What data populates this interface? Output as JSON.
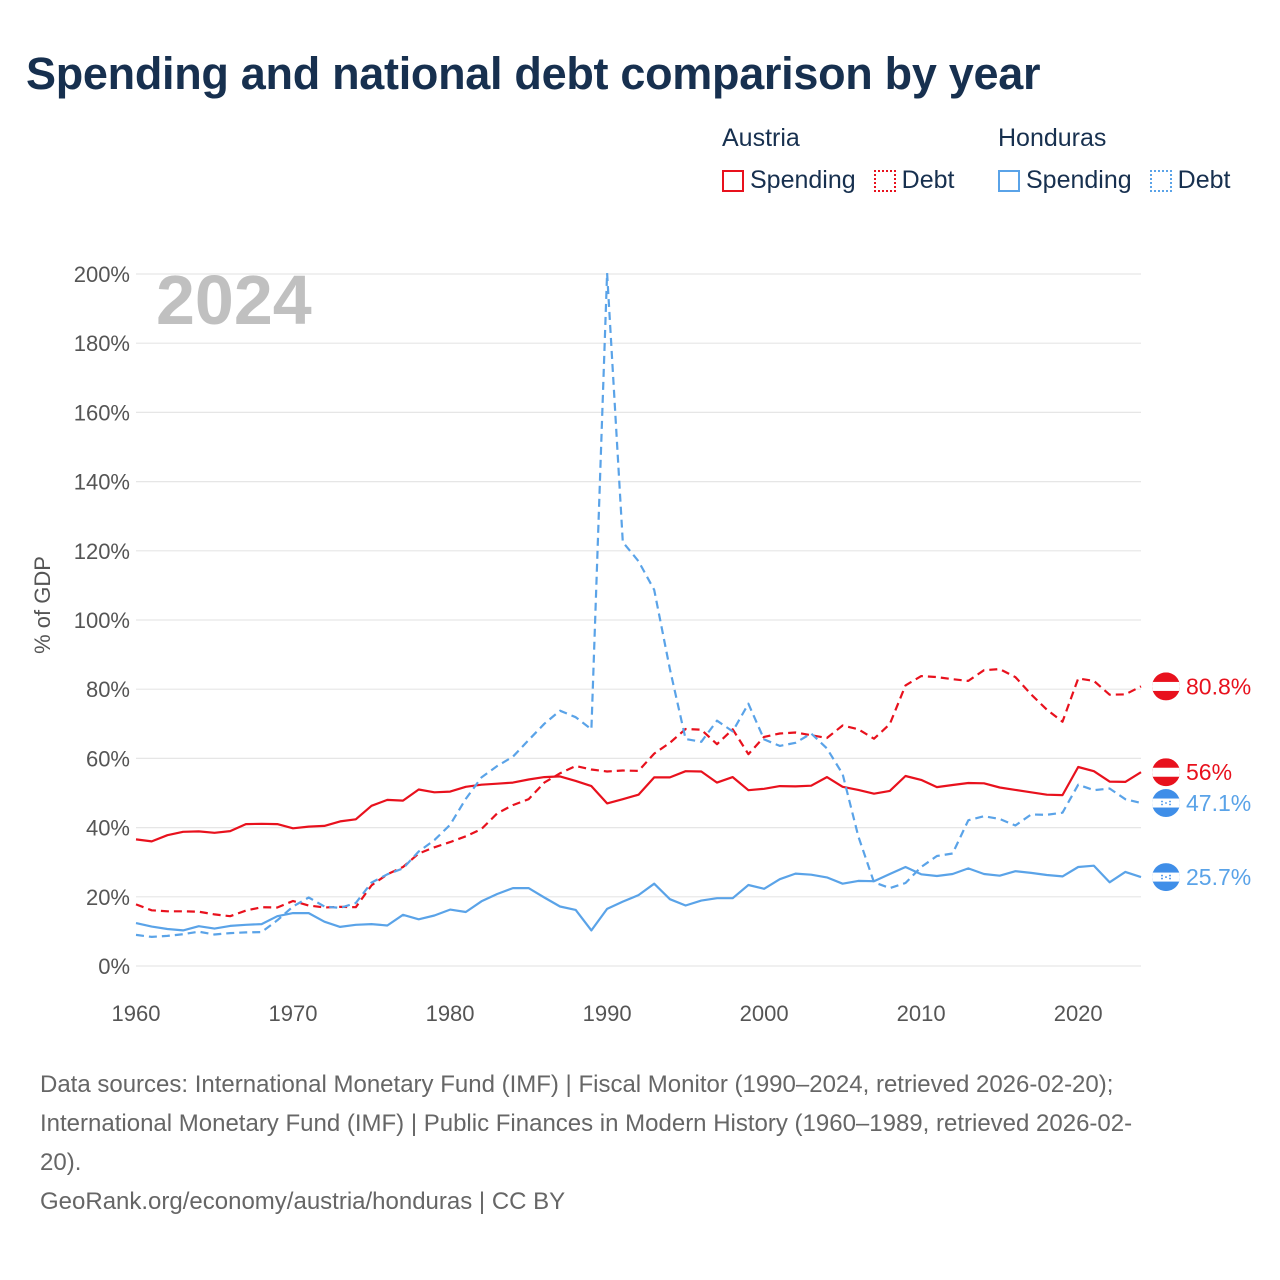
{
  "title": "Spending and national debt comparison by year",
  "legend": [
    {
      "country": "Austria",
      "color": "#e8111d",
      "items": [
        {
          "label": "Spending",
          "style": "solid"
        },
        {
          "label": "Debt",
          "style": "dotted"
        }
      ]
    },
    {
      "country": "Honduras",
      "color": "#5aa3e8",
      "items": [
        {
          "label": "Spending",
          "style": "solid"
        },
        {
          "label": "Debt",
          "style": "dotted"
        }
      ]
    }
  ],
  "footer": {
    "line1": "Data sources: International Monetary Fund (IMF) | Fiscal Monitor (1990–2024, retrieved 2026-02-20);",
    "line2": "International Monetary Fund (IMF) | Public Finances in Modern History (1960–1989, retrieved 2026-02-",
    "line3": "20).",
    "line4": "GeoRank.org/economy/austria/honduras | CC BY"
  },
  "chart_data": {
    "type": "line",
    "year_label": "2024",
    "ylabel": "% of GDP",
    "xlim": [
      1960,
      2024
    ],
    "ylim": [
      0,
      200
    ],
    "x_ticks": [
      1960,
      1970,
      1980,
      1990,
      2000,
      2010,
      2020
    ],
    "y_ticks": [
      0,
      20,
      40,
      60,
      80,
      100,
      120,
      140,
      160,
      180,
      200
    ],
    "y_tick_labels": [
      "0%",
      "20%",
      "40%",
      "60%",
      "80%",
      "100%",
      "120%",
      "140%",
      "160%",
      "180%",
      "200%"
    ],
    "x_start": 1960,
    "series": [
      {
        "name": "Austria Spending",
        "color": "#e8111d",
        "dash": "none",
        "end_label": "56%",
        "flag": "austria",
        "values": [
          36.6,
          36,
          37.8,
          38.8,
          38.9,
          38.5,
          39,
          41,
          41.1,
          41,
          39.8,
          40.3,
          40.5,
          41.8,
          42.4,
          46.3,
          48,
          47.8,
          51,
          50.2,
          50.4,
          51.8,
          52.4,
          52.7,
          53,
          53.9,
          54.6,
          54.8,
          53.5,
          52,
          47,
          48.2,
          49.5,
          54.5,
          54.5,
          56.3,
          56.2,
          53,
          54.6,
          50.8,
          51.2,
          52,
          51.9,
          52.1,
          54.6,
          51.8,
          50.9,
          49.8,
          50.6,
          54.9,
          53.8,
          51.7,
          52.3,
          52.9,
          52.8,
          51.6,
          50.9,
          50.2,
          49.5,
          49.4,
          57.5,
          56.3,
          53.3,
          53.2,
          56
        ]
      },
      {
        "name": "Austria Debt",
        "color": "#e8111d",
        "dash": "8,5",
        "end_label": "80.8%",
        "flag": "austria",
        "values": [
          17.8,
          16.1,
          15.8,
          15.8,
          15.7,
          14.9,
          14.4,
          16,
          17,
          16.9,
          18.8,
          17.5,
          16.9,
          17.1,
          17,
          23.3,
          26.5,
          28.6,
          32.5,
          34.3,
          35.8,
          37.5,
          39.6,
          44.1,
          46.5,
          48.2,
          53,
          55.7,
          57.8,
          56.8,
          56.2,
          56.5,
          56.4,
          61.4,
          64.5,
          68.5,
          68.3,
          64.1,
          68.4,
          61.2,
          66.2,
          67.2,
          67.5,
          66.7,
          65.9,
          69.5,
          68.4,
          65.7,
          69.9,
          81.1,
          83.8,
          83.5,
          82.9,
          82.4,
          85.5,
          85.8,
          83.5,
          78.5,
          74.1,
          70.6,
          83.1,
          82.4,
          78.4,
          78.5,
          80.8
        ]
      },
      {
        "name": "Honduras Spending",
        "color": "#5aa3e8",
        "dash": "none",
        "end_label": "25.7%",
        "flag": "honduras",
        "values": [
          12.4,
          11.4,
          10.7,
          10.3,
          11.5,
          10.8,
          11.6,
          11.9,
          12.1,
          14.4,
          15.3,
          15.3,
          12.8,
          11.3,
          11.9,
          12.1,
          11.7,
          14.8,
          13.5,
          14.6,
          16.3,
          15.6,
          18.7,
          20.8,
          22.5,
          22.5,
          19.8,
          17.2,
          16.2,
          10.3,
          16.5,
          18.6,
          20.5,
          23.8,
          19.3,
          17.5,
          18.9,
          19.6,
          19.6,
          23.4,
          22.3,
          25.1,
          26.7,
          26.4,
          25.6,
          23.8,
          24.6,
          24.5,
          26.6,
          28.6,
          26.5,
          26,
          26.6,
          28.2,
          26.6,
          26.1,
          27.4,
          26.9,
          26.3,
          25.9,
          28.6,
          29,
          24.2,
          27.2,
          25.7
        ]
      },
      {
        "name": "Honduras Debt",
        "color": "#5aa3e8",
        "dash": "8,5",
        "end_label": "47.1%",
        "flag": "honduras",
        "values": [
          9,
          8.4,
          8.7,
          9.2,
          9.9,
          9.1,
          9.5,
          9.7,
          9.8,
          13.2,
          17.2,
          19.8,
          17.2,
          16.8,
          18.2,
          24.1,
          26.5,
          28.2,
          33.1,
          36.4,
          40.8,
          48.3,
          54.5,
          57.8,
          60.5,
          65.3,
          70,
          73.8,
          71.9,
          68.4,
          200.3,
          122.5,
          117,
          108.7,
          85.8,
          65.6,
          64.8,
          70.9,
          67.8,
          75.8,
          65.5,
          63.6,
          64.5,
          67.2,
          62.9,
          55.5,
          37.5,
          24.2,
          22.5,
          24,
          28.6,
          31.8,
          32.5,
          42.1,
          43.3,
          42.5,
          40.6,
          43.8,
          43.7,
          44.3,
          52.4,
          50.8,
          51.3,
          48.2,
          47.1
        ]
      }
    ]
  }
}
